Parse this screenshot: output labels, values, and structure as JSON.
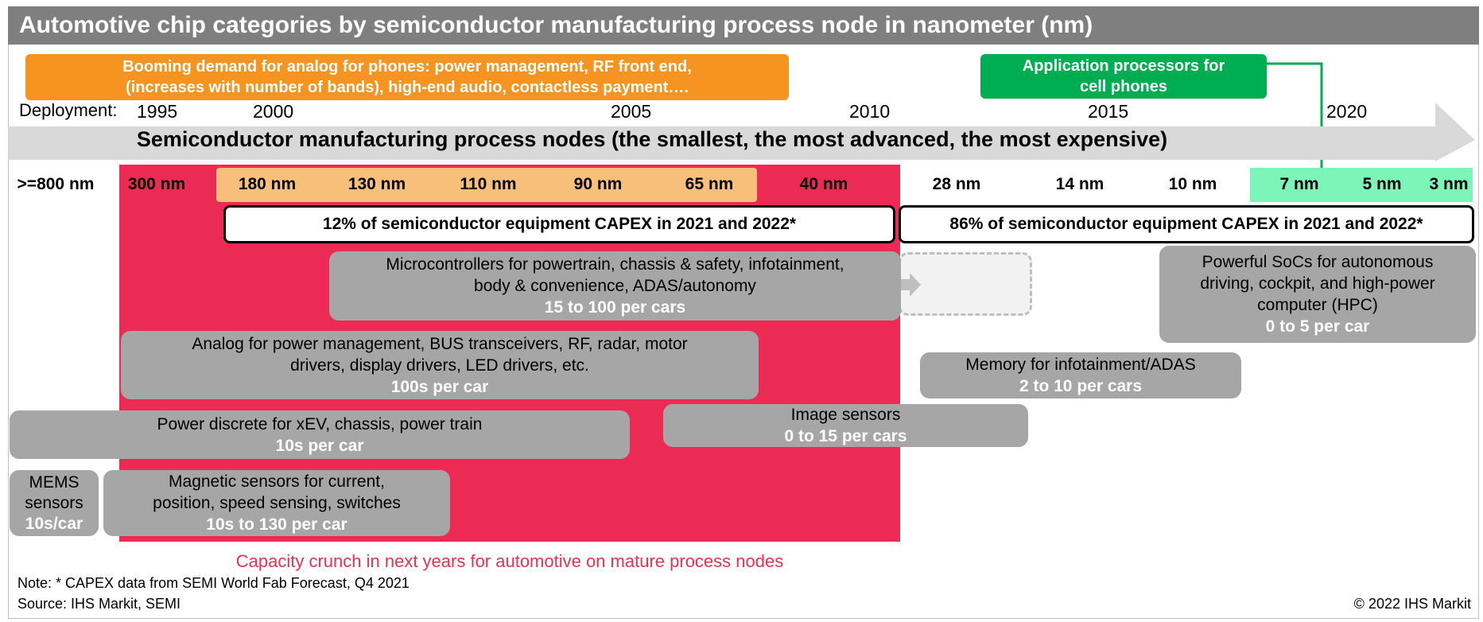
{
  "title": "Automotive chip categories by semiconductor manufacturing process node in nanometer (nm)",
  "banners": {
    "phones_analog": [
      "Booming demand for analog for phones: power management, RF front end,",
      "(increases with number of bands), high-end audio, contactless payment…."
    ],
    "app_processors": [
      "Application processors for",
      "cell phones"
    ]
  },
  "timeline": {
    "deployment_label": "Deployment:",
    "years": [
      "1995",
      "2000",
      "2005",
      "2010",
      "2015",
      "2020"
    ],
    "arrow_label": "Semiconductor manufacturing process nodes (the smallest, the most advanced, the most expensive)"
  },
  "nodes": [
    ">=800 nm",
    "300 nm",
    "180 nm",
    "130 nm",
    "110 nm",
    "90 nm",
    "65 nm",
    "40 nm",
    "28 nm",
    "14 nm",
    "10 nm",
    "7 nm",
    "5 nm",
    "3 nm"
  ],
  "capex": {
    "mature": "12% of semiconductor equipment CAPEX in 2021 and 2022*",
    "advanced": "86% of semiconductor equipment CAPEX in 2021 and 2022*"
  },
  "categories": {
    "microcontrollers": {
      "lines": [
        "Microcontrollers for powertrain, chassis & safety, infotainment,",
        "body & convenience, ADAS/autonomy"
      ],
      "count": "15 to 100 per cars"
    },
    "socs": {
      "lines": [
        "Powerful SoCs for autonomous",
        "driving, cockpit, and high-power",
        "computer (HPC)"
      ],
      "count": "0 to 5 per car"
    },
    "analog": {
      "lines": [
        "Analog for power management, BUS transceivers, RF, radar, motor",
        "drivers, display drivers, LED drivers, etc."
      ],
      "count": "100s per car"
    },
    "memory": {
      "lines": [
        "Memory for infotainment/ADAS"
      ],
      "count": "2 to 10 per cars"
    },
    "power_discrete": {
      "lines": [
        "Power discrete for xEV, chassis, power train"
      ],
      "count": "10s per car"
    },
    "image_sensors": {
      "lines": [
        "Image sensors"
      ],
      "count": "0 to 15 per cars"
    },
    "mems": {
      "lines": [
        "MEMS",
        "sensors"
      ],
      "count": "10s/car"
    },
    "magnetic": {
      "lines": [
        "Magnetic sensors for current,",
        "position, speed sensing, switches"
      ],
      "count": "10s to 130 per car"
    }
  },
  "footer": {
    "crunch": "Capacity crunch in next years for automotive on mature process nodes",
    "note": "Note: * CAPEX data from SEMI World Fab Forecast, Q4 2021",
    "source": "Source: IHS Markit, SEMI",
    "copyright": "© 2022 IHS Markit"
  },
  "colors": {
    "title_bar": "#7f7f7f",
    "mature_zone": "#ec2b54",
    "orange_banner": "#f59420",
    "green_banner": "#00ad50",
    "category_box": "#a6a6a6",
    "arrow": "#d9d9d9"
  }
}
